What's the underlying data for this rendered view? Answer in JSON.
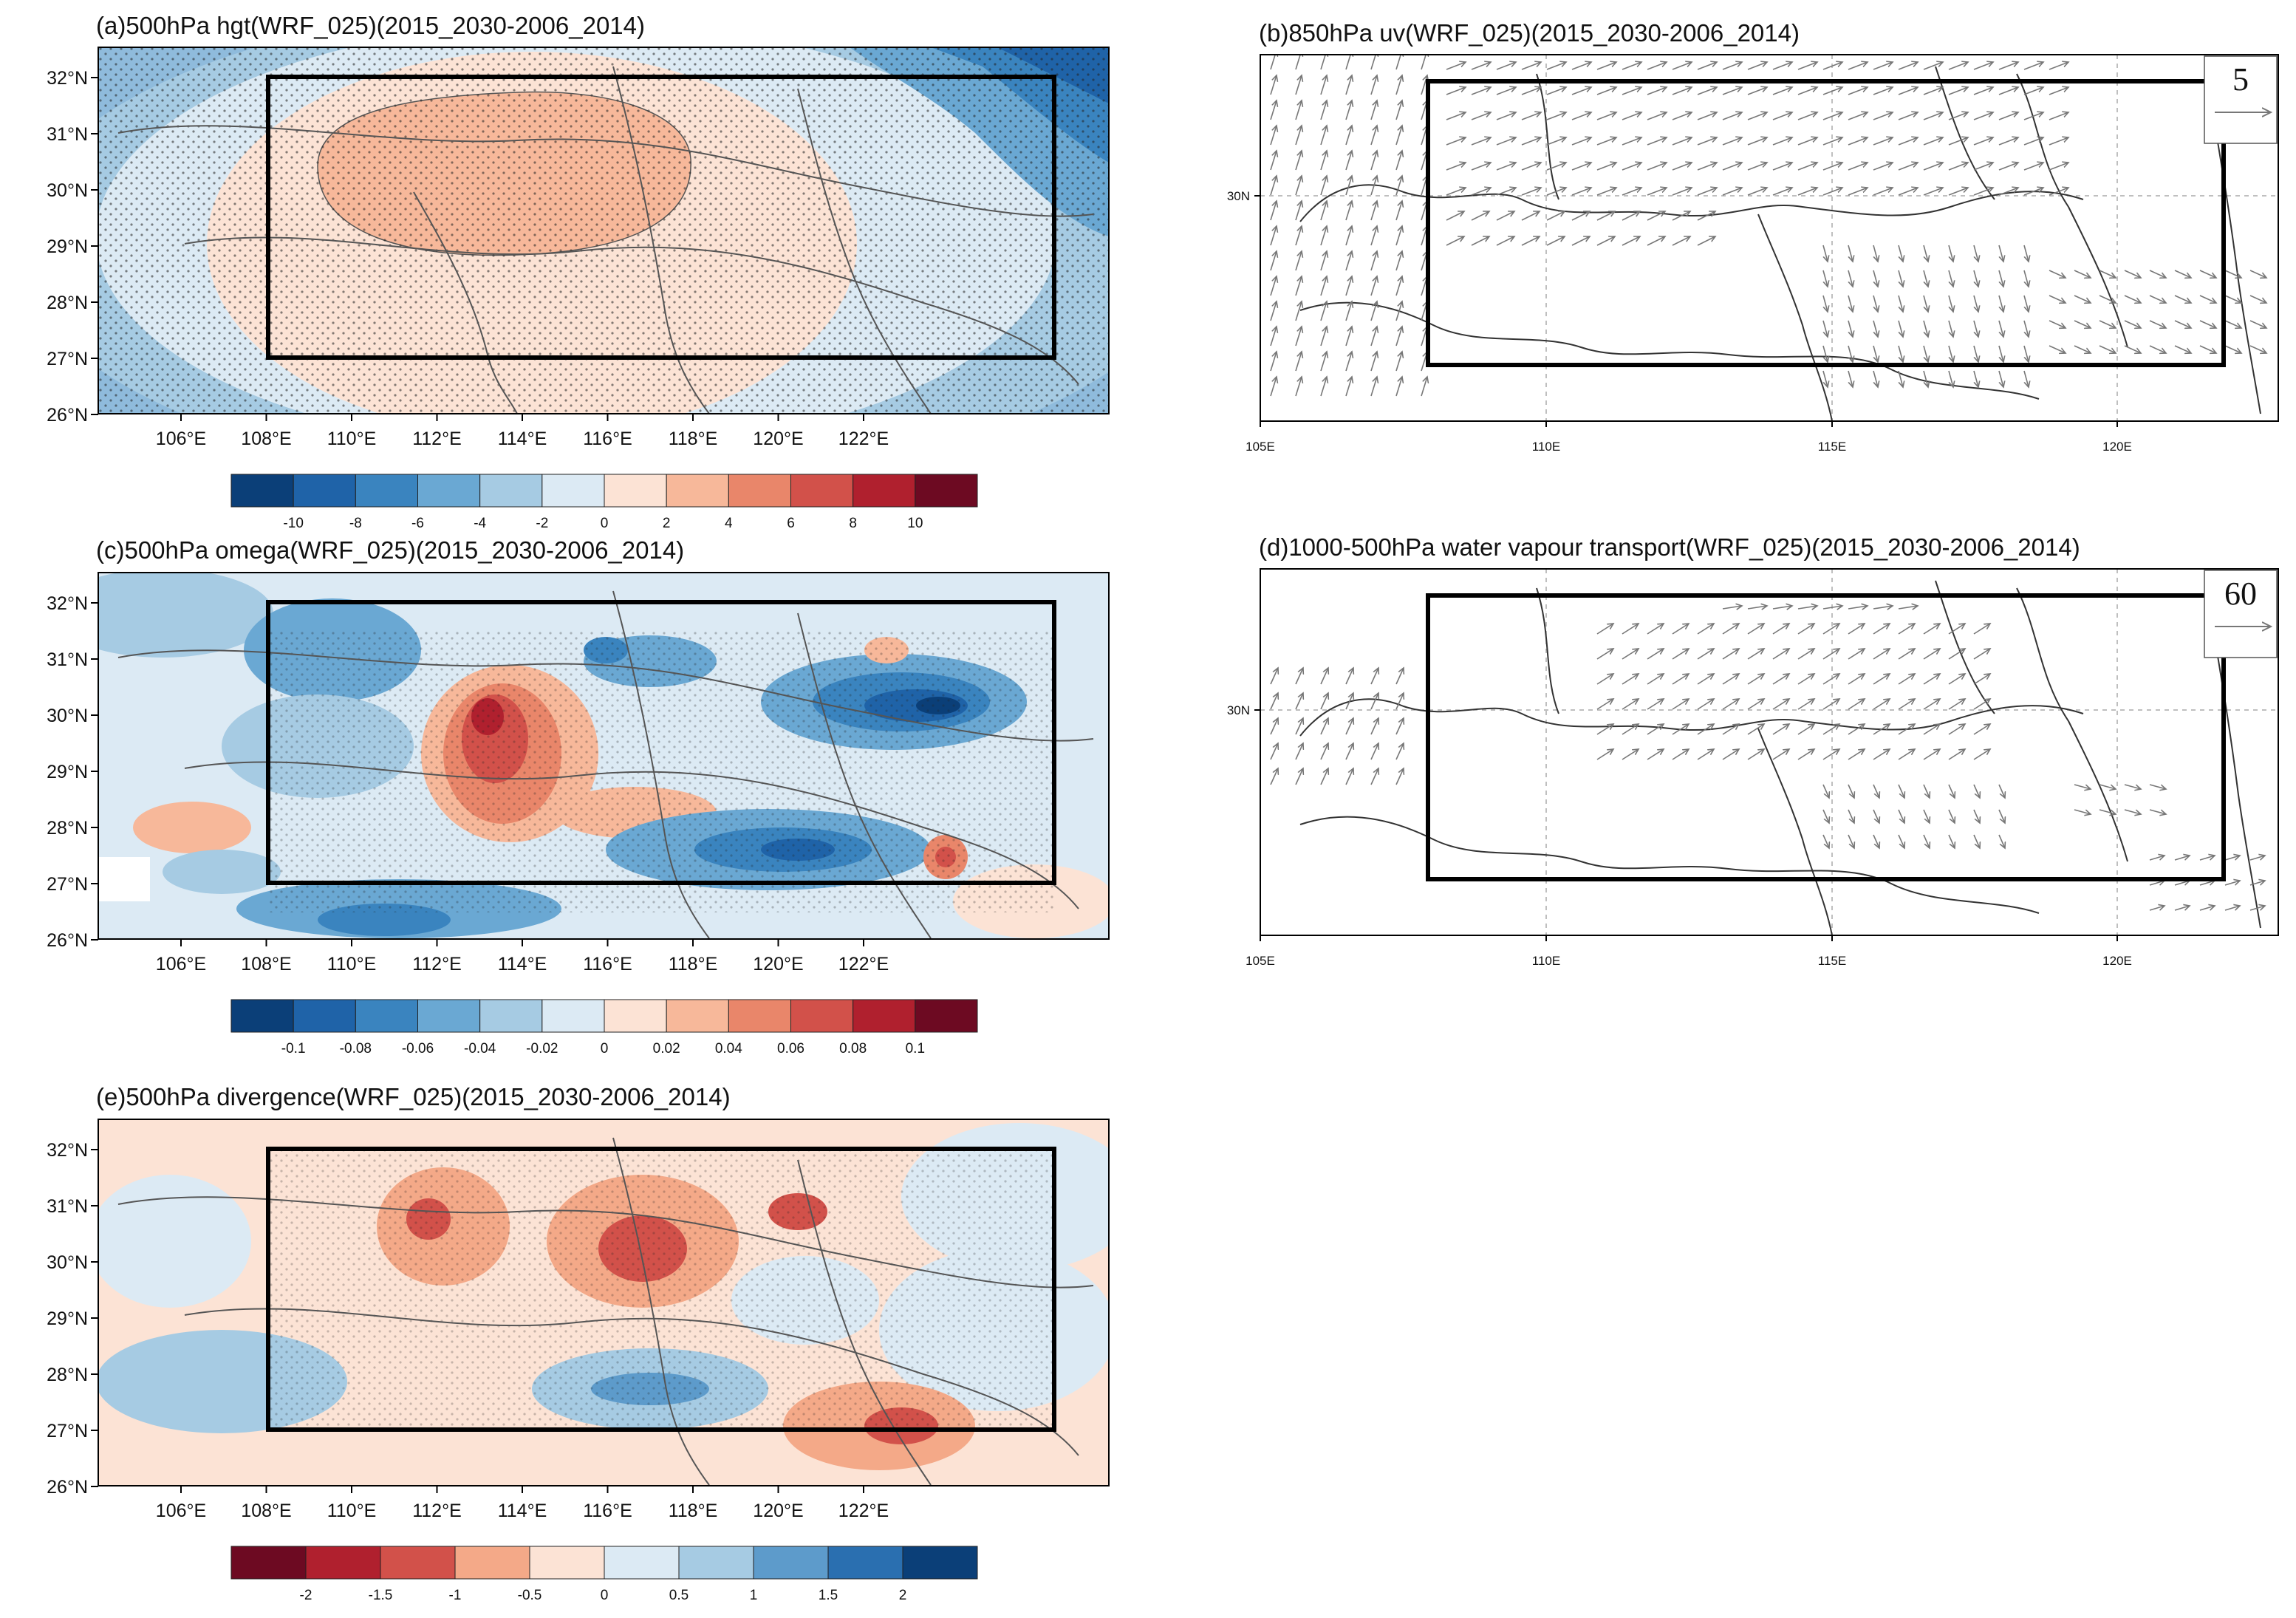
{
  "panels": {
    "a": {
      "title": "(a)500hPa hgt(WRF_025)(2015_2030-2006_2014)",
      "x_ticks": [
        "106°E",
        "108°E",
        "110°E",
        "112°E",
        "114°E",
        "116°E",
        "118°E",
        "120°E",
        "122°E"
      ],
      "y_ticks": [
        "32°N",
        "31°N",
        "30°N",
        "29°N",
        "28°N",
        "27°N",
        "26°N"
      ],
      "colorbar_labels": [
        "-10",
        "-8",
        "-6",
        "-4",
        "-2",
        "0",
        "2",
        "4",
        "6",
        "8",
        "10"
      ]
    },
    "b": {
      "title": "(b)850hPa uv(WRF_025)(2015_2030-2006_2014)",
      "x_ticks": [
        "105E",
        "110E",
        "115E",
        "120E"
      ],
      "y_ticks": [
        "30N"
      ],
      "ref_vector": "5"
    },
    "c": {
      "title": "(c)500hPa omega(WRF_025)(2015_2030-2006_2014)",
      "x_ticks": [
        "106°E",
        "108°E",
        "110°E",
        "112°E",
        "114°E",
        "116°E",
        "118°E",
        "120°E",
        "122°E"
      ],
      "y_ticks": [
        "32°N",
        "31°N",
        "30°N",
        "29°N",
        "28°N",
        "27°N",
        "26°N"
      ],
      "colorbar_labels": [
        "-0.1",
        "-0.08",
        "-0.06",
        "-0.04",
        "-0.02",
        "0",
        "0.02",
        "0.04",
        "0.06",
        "0.08",
        "0.1"
      ]
    },
    "d": {
      "title": "(d)1000-500hPa water vapour transport(WRF_025)(2015_2030-2006_2014)",
      "x_ticks": [
        "105E",
        "110E",
        "115E",
        "120E"
      ],
      "y_ticks": [
        "30N"
      ],
      "ref_vector": "60"
    },
    "e": {
      "title": "(e)500hPa divergence(WRF_025)(2015_2030-2006_2014)",
      "x_ticks": [
        "106°E",
        "108°E",
        "110°E",
        "112°E",
        "114°E",
        "116°E",
        "118°E",
        "120°E",
        "122°E"
      ],
      "y_ticks": [
        "32°N",
        "31°N",
        "30°N",
        "29°N",
        "28°N",
        "27°N",
        "26°N"
      ],
      "colorbar_labels": [
        "-2",
        "-1.5",
        "-1",
        "-0.5",
        "0",
        "0.5",
        "1",
        "1.5",
        "2"
      ]
    }
  },
  "colors": {
    "blue_red_12": [
      "#0b3f78",
      "#1f63a8",
      "#3a84bf",
      "#6aa8d3",
      "#a6cbe3",
      "#dceaf4",
      "#fce3d5",
      "#f7b89a",
      "#e9866a",
      "#d2514a",
      "#b0202e",
      "#6d0a22"
    ],
    "red_blue_10": [
      "#6d0a22",
      "#b0202e",
      "#d2514a",
      "#f4a988",
      "#fce3d5",
      "#dceaf4",
      "#a6cbe3",
      "#5d9bcb",
      "#2a6fb0",
      "#0b3f78"
    ]
  }
}
